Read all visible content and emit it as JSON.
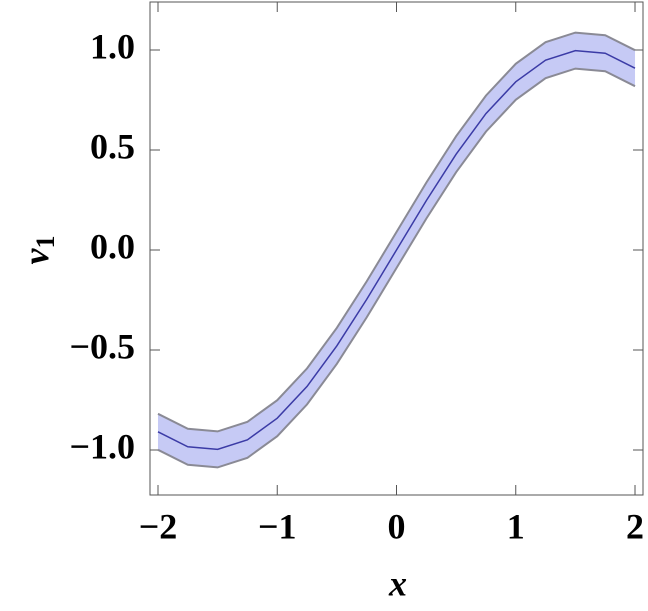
{
  "chart_data": {
    "type": "line",
    "xlabel": "x",
    "ylabel": "v",
    "ylabel_subscript": "1",
    "x": [
      -2,
      -1.75,
      -1.5,
      -1.25,
      -1,
      -0.75,
      -0.5,
      -0.25,
      0,
      0.25,
      0.5,
      0.75,
      1,
      1.25,
      1.5,
      1.75,
      2
    ],
    "values": [
      -0.909,
      -0.984,
      -0.997,
      -0.949,
      -0.841,
      -0.682,
      -0.479,
      -0.247,
      0,
      0.247,
      0.479,
      0.682,
      0.841,
      0.949,
      0.997,
      0.984,
      0.909
    ],
    "band_lower": [
      -0.999,
      -1.074,
      -1.087,
      -1.039,
      -0.931,
      -0.772,
      -0.569,
      -0.337,
      -0.09,
      0.157,
      0.389,
      0.592,
      0.751,
      0.859,
      0.907,
      0.894,
      0.819
    ],
    "band_upper": [
      -0.819,
      -0.894,
      -0.907,
      -0.859,
      -0.751,
      -0.592,
      -0.389,
      -0.157,
      0.09,
      0.337,
      0.569,
      0.772,
      0.931,
      1.039,
      1.087,
      1.074,
      0.999
    ],
    "color": "#3b3ba6",
    "band_color": "#c6caf5",
    "band_edge_color": "#8a8a95",
    "xlim": [
      -2.067,
      2.067
    ],
    "ylim": [
      -1.225,
      1.24
    ],
    "xticks": [
      {
        "value": -2,
        "label": "−2"
      },
      {
        "value": -1,
        "label": "−1"
      },
      0,
      1,
      2
    ],
    "yticks": [
      {
        "value": -1,
        "label": "−1.0"
      },
      {
        "value": -0.5,
        "label": "−0.5"
      },
      {
        "value": 0,
        "label": "0.0"
      },
      0.5,
      {
        "value": 1,
        "label": "1.0"
      }
    ]
  }
}
